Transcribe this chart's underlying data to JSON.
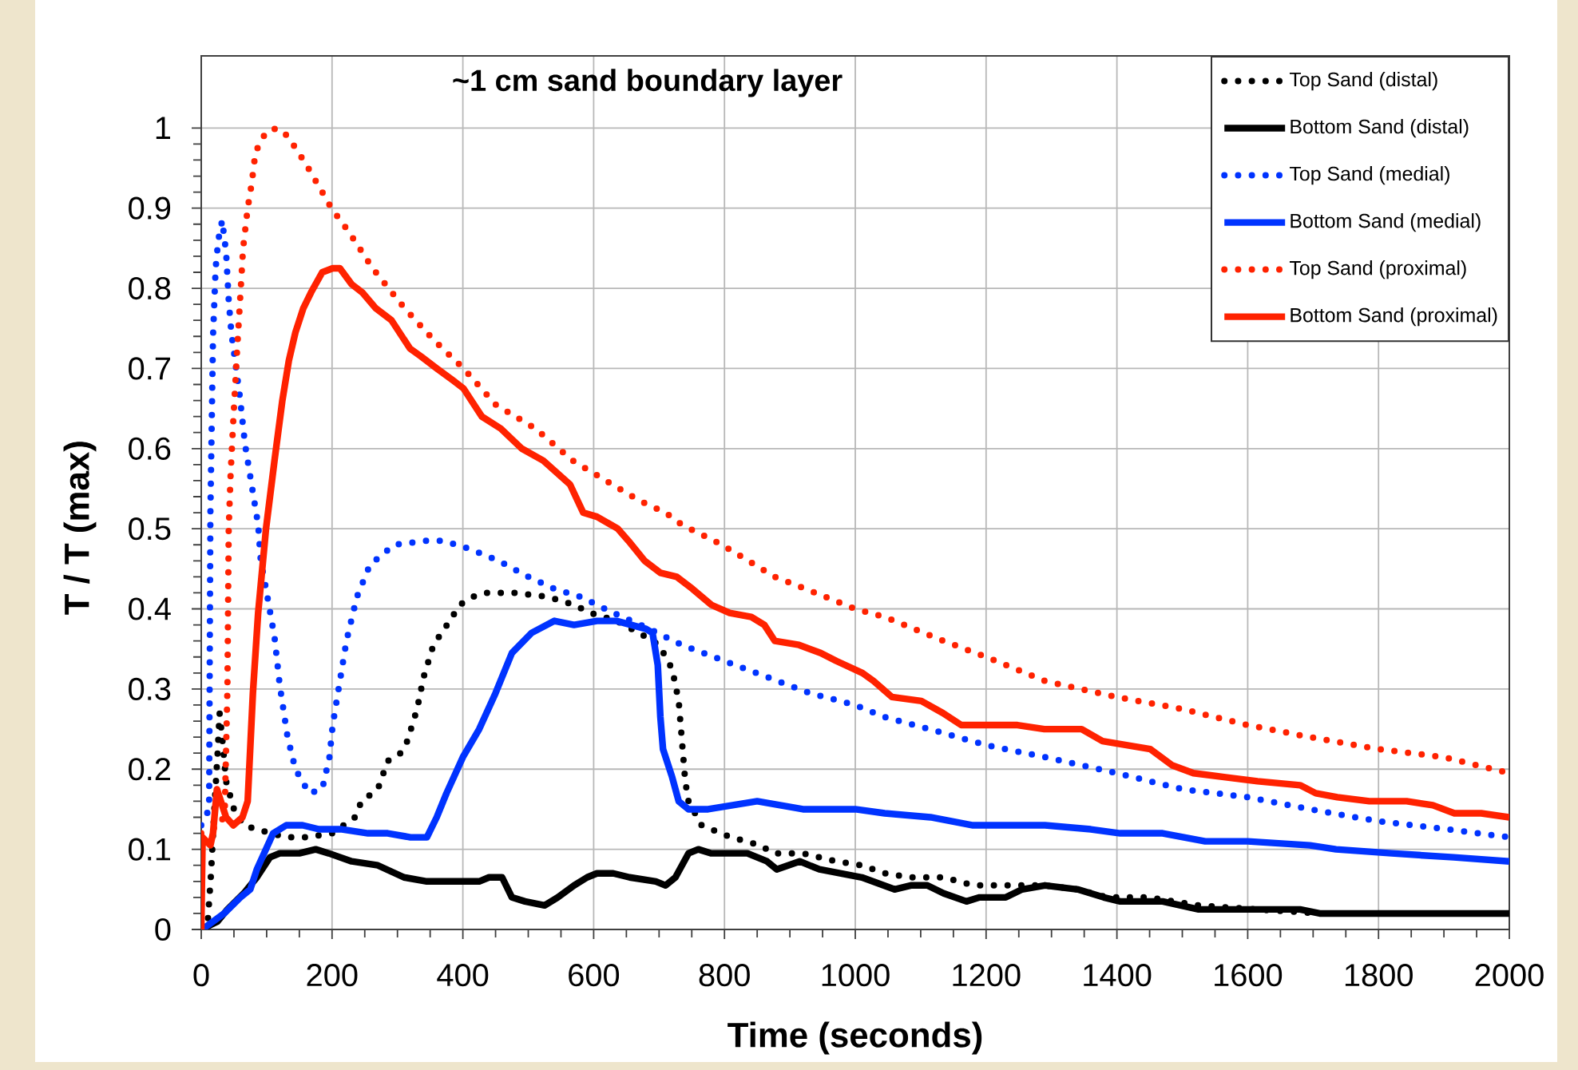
{
  "chart_data": {
    "type": "line",
    "title": "~1 cm sand boundary layer",
    "xlabel": "Time (seconds)",
    "ylabel": "T / T (max)",
    "xlim": [
      0,
      2000
    ],
    "ylim": [
      0,
      1.09
    ],
    "xticks": [
      0,
      200,
      400,
      600,
      800,
      1000,
      1200,
      1400,
      1600,
      1800,
      2000
    ],
    "yticks": [
      0,
      0.1,
      0.2,
      0.3,
      0.4,
      0.5,
      0.6,
      0.7,
      0.8,
      0.9,
      1
    ],
    "grid": true,
    "legend": "top right",
    "series": [
      {
        "name": "Top Sand (distal)",
        "color": "#000000",
        "line_style": "dotted",
        "x": [
          0,
          10,
          15,
          20,
          25,
          28,
          32,
          38,
          50,
          65,
          85,
          130,
          160,
          200,
          235,
          245,
          270,
          285,
          305,
          315,
          330,
          340,
          355,
          380,
          395,
          415,
          435,
          480,
          530,
          570,
          595,
          635,
          680,
          700,
          720,
          730,
          735,
          740,
          745,
          765,
          810,
          855,
          875,
          920,
          970,
          1010,
          1045,
          1085,
          1135,
          1180,
          1230,
          1290,
          1340,
          1385,
          1450,
          1525,
          1615,
          1710,
          1820,
          2000
        ],
        "values": [
          0,
          0.01,
          0.07,
          0.15,
          0.22,
          0.27,
          0.24,
          0.185,
          0.15,
          0.13,
          0.125,
          0.115,
          0.115,
          0.12,
          0.14,
          0.16,
          0.175,
          0.21,
          0.22,
          0.235,
          0.275,
          0.315,
          0.355,
          0.385,
          0.405,
          0.415,
          0.42,
          0.42,
          0.415,
          0.405,
          0.395,
          0.385,
          0.365,
          0.355,
          0.325,
          0.285,
          0.235,
          0.185,
          0.16,
          0.13,
          0.115,
          0.105,
          0.095,
          0.095,
          0.085,
          0.08,
          0.07,
          0.065,
          0.065,
          0.055,
          0.055,
          0.055,
          0.05,
          0.04,
          0.04,
          0.03,
          0.025,
          0.02,
          0.02,
          0.02
        ]
      },
      {
        "name": "Bottom Sand (distal)",
        "color": "#000000",
        "line_style": "solid",
        "x": [
          0,
          25,
          40,
          65,
          85,
          105,
          120,
          150,
          175,
          195,
          230,
          270,
          310,
          345,
          425,
          440,
          460,
          475,
          495,
          525,
          545,
          570,
          590,
          605,
          630,
          655,
          695,
          710,
          725,
          745,
          760,
          780,
          835,
          865,
          880,
          915,
          945,
          1010,
          1060,
          1085,
          1110,
          1135,
          1170,
          1190,
          1230,
          1255,
          1290,
          1340,
          1360,
          1380,
          1405,
          1425,
          1470,
          1525,
          1575,
          1615,
          1680,
          1710,
          1860,
          2000
        ],
        "values": [
          0,
          0.01,
          0.025,
          0.045,
          0.065,
          0.09,
          0.095,
          0.095,
          0.1,
          0.095,
          0.085,
          0.08,
          0.065,
          0.06,
          0.06,
          0.065,
          0.065,
          0.04,
          0.035,
          0.03,
          0.04,
          0.055,
          0.065,
          0.07,
          0.07,
          0.065,
          0.06,
          0.055,
          0.065,
          0.095,
          0.1,
          0.095,
          0.095,
          0.085,
          0.075,
          0.085,
          0.075,
          0.065,
          0.05,
          0.055,
          0.055,
          0.045,
          0.035,
          0.04,
          0.04,
          0.05,
          0.055,
          0.05,
          0.045,
          0.04,
          0.035,
          0.035,
          0.035,
          0.025,
          0.025,
          0.025,
          0.025,
          0.02,
          0.02,
          0.02
        ]
      },
      {
        "name": "Top Sand (medial)",
        "color": "#0033ff",
        "line_style": "dotted",
        "x": [
          0,
          12,
          14,
          18,
          22,
          26,
          32,
          38,
          42,
          46,
          59,
          67,
          79,
          87,
          91,
          99,
          112,
          120,
          132,
          144,
          165,
          185,
          196,
          201,
          209,
          222,
          238,
          258,
          295,
          345,
          370,
          410,
          455,
          500,
          540,
          580,
          630,
          685,
          735,
          800,
          865,
          930,
          1000,
          1045,
          1135,
          1200,
          1290,
          1400,
          1500,
          1600,
          1695,
          1800,
          1905,
          2000
        ],
        "values": [
          0.13,
          0.15,
          0.52,
          0.74,
          0.825,
          0.86,
          0.885,
          0.845,
          0.785,
          0.745,
          0.665,
          0.605,
          0.545,
          0.505,
          0.46,
          0.425,
          0.365,
          0.305,
          0.24,
          0.2,
          0.17,
          0.175,
          0.215,
          0.255,
          0.295,
          0.36,
          0.415,
          0.455,
          0.48,
          0.485,
          0.485,
          0.475,
          0.46,
          0.44,
          0.425,
          0.415,
          0.395,
          0.375,
          0.355,
          0.335,
          0.315,
          0.295,
          0.28,
          0.265,
          0.245,
          0.23,
          0.215,
          0.195,
          0.175,
          0.165,
          0.15,
          0.135,
          0.125,
          0.115
        ]
      },
      {
        "name": "Bottom Sand (medial)",
        "color": "#0033ff",
        "line_style": "solid",
        "x": [
          0,
          10,
          35,
          60,
          75,
          85,
          110,
          130,
          155,
          180,
          215,
          255,
          285,
          320,
          345,
          360,
          375,
          400,
          425,
          450,
          475,
          505,
          540,
          570,
          605,
          635,
          680,
          690,
          698,
          702,
          706,
          720,
          730,
          745,
          775,
          850,
          920,
          1000,
          1045,
          1115,
          1180,
          1290,
          1360,
          1405,
          1470,
          1535,
          1600,
          1695,
          1735,
          1820,
          1915,
          2000
        ],
        "values": [
          0,
          0.005,
          0.02,
          0.04,
          0.05,
          0.075,
          0.12,
          0.13,
          0.13,
          0.125,
          0.125,
          0.12,
          0.12,
          0.115,
          0.115,
          0.14,
          0.17,
          0.215,
          0.25,
          0.295,
          0.345,
          0.37,
          0.385,
          0.38,
          0.385,
          0.385,
          0.375,
          0.37,
          0.33,
          0.265,
          0.225,
          0.19,
          0.16,
          0.15,
          0.15,
          0.16,
          0.15,
          0.15,
          0.145,
          0.14,
          0.13,
          0.13,
          0.125,
          0.12,
          0.12,
          0.11,
          0.11,
          0.105,
          0.1,
          0.095,
          0.09,
          0.085
        ]
      },
      {
        "name": "Top Sand (proximal)",
        "color": "#ff2200",
        "line_style": "dotted",
        "x": [
          0,
          30,
          36,
          40,
          42,
          45,
          49,
          55,
          59,
          64,
          71,
          77,
          83,
          99,
          116,
          132,
          160,
          185,
          199,
          226,
          262,
          311,
          356,
          401,
          450,
          511,
          568,
          629,
          670,
          710,
          735,
          796,
          877,
          939,
          1000,
          1045,
          1135,
          1200,
          1290,
          1400,
          1500,
          1600,
          1695,
          1800,
          1900,
          2000
        ],
        "values": [
          0.12,
          0.13,
          0.15,
          0.3,
          0.5,
          0.57,
          0.635,
          0.725,
          0.78,
          0.85,
          0.9,
          0.93,
          0.97,
          0.995,
          1.0,
          0.99,
          0.955,
          0.92,
          0.9,
          0.87,
          0.825,
          0.775,
          0.735,
          0.7,
          0.655,
          0.625,
          0.585,
          0.555,
          0.535,
          0.52,
          0.505,
          0.48,
          0.44,
          0.42,
          0.4,
          0.39,
          0.36,
          0.34,
          0.31,
          0.29,
          0.275,
          0.255,
          0.24,
          0.225,
          0.215,
          0.195
        ]
      },
      {
        "name": "Bottom Sand (proximal)",
        "color": "#ff2200",
        "line_style": "solid",
        "x": [
          0,
          2,
          14,
          18,
          24,
          30,
          38,
          49,
          63,
          71,
          79,
          87,
          99,
          112,
          124,
          134,
          144,
          156,
          168,
          185,
          201,
          212,
          230,
          246,
          267,
          291,
          319,
          336,
          360,
          385,
          401,
          429,
          458,
          490,
          523,
          564,
          584,
          605,
          637,
          653,
          678,
          702,
          727,
          751,
          780,
          808,
          841,
          861,
          877,
          914,
          947,
          971,
          1011,
          1028,
          1056,
          1101,
          1134,
          1162,
          1191,
          1248,
          1289,
          1346,
          1378,
          1451,
          1484,
          1517,
          1566,
          1615,
          1680,
          1704,
          1737,
          1786,
          1843,
          1883,
          1916,
          1957,
          2000
        ],
        "values": [
          0,
          0.115,
          0.105,
          0.12,
          0.175,
          0.16,
          0.14,
          0.13,
          0.14,
          0.16,
          0.295,
          0.395,
          0.5,
          0.585,
          0.66,
          0.71,
          0.745,
          0.775,
          0.795,
          0.82,
          0.825,
          0.825,
          0.805,
          0.795,
          0.775,
          0.76,
          0.725,
          0.715,
          0.7,
          0.685,
          0.675,
          0.64,
          0.625,
          0.6,
          0.585,
          0.555,
          0.52,
          0.515,
          0.5,
          0.485,
          0.46,
          0.445,
          0.44,
          0.425,
          0.405,
          0.395,
          0.39,
          0.38,
          0.36,
          0.355,
          0.345,
          0.335,
          0.32,
          0.31,
          0.29,
          0.285,
          0.27,
          0.255,
          0.255,
          0.255,
          0.25,
          0.25,
          0.235,
          0.225,
          0.205,
          0.195,
          0.19,
          0.185,
          0.18,
          0.17,
          0.165,
          0.16,
          0.16,
          0.155,
          0.145,
          0.145,
          0.14
        ]
      }
    ]
  }
}
